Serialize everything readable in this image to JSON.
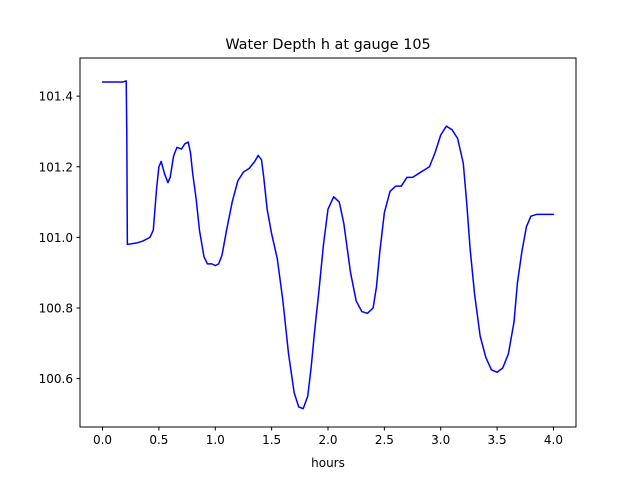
{
  "chart_data": {
    "type": "line",
    "title": "Water Depth h at gauge 105",
    "xlabel": "hours",
    "ylabel": "",
    "xlim": [
      -0.2,
      4.2
    ],
    "ylim": [
      100.463,
      101.508
    ],
    "xticks": [
      0.0,
      0.5,
      1.0,
      1.5,
      2.0,
      2.5,
      3.0,
      3.5,
      4.0
    ],
    "xtick_labels": [
      "0.0",
      "0.5",
      "1.0",
      "1.5",
      "2.0",
      "2.5",
      "3.0",
      "3.5",
      "4.0"
    ],
    "yticks": [
      100.6,
      100.8,
      101.0,
      101.2,
      101.4
    ],
    "ytick_labels": [
      "100.6",
      "100.8",
      "101.0",
      "101.2",
      "101.4"
    ],
    "grid": false,
    "series": [
      {
        "color": "#0000ff",
        "x": [
          0.0,
          0.1,
          0.18,
          0.21,
          0.215,
          0.22,
          0.3,
          0.36,
          0.42,
          0.45,
          0.48,
          0.5,
          0.52,
          0.55,
          0.58,
          0.6,
          0.63,
          0.66,
          0.7,
          0.73,
          0.76,
          0.78,
          0.8,
          0.83,
          0.86,
          0.9,
          0.93,
          0.97,
          1.0,
          1.03,
          1.06,
          1.1,
          1.15,
          1.2,
          1.25,
          1.3,
          1.35,
          1.38,
          1.41,
          1.43,
          1.46,
          1.5,
          1.55,
          1.6,
          1.65,
          1.7,
          1.74,
          1.78,
          1.82,
          1.85,
          1.88,
          1.92,
          1.96,
          2.0,
          2.05,
          2.1,
          2.14,
          2.17,
          2.2,
          2.25,
          2.3,
          2.35,
          2.4,
          2.43,
          2.46,
          2.5,
          2.55,
          2.6,
          2.65,
          2.7,
          2.75,
          2.8,
          2.85,
          2.9,
          2.95,
          3.0,
          3.05,
          3.1,
          3.15,
          3.2,
          3.23,
          3.26,
          3.3,
          3.35,
          3.4,
          3.45,
          3.5,
          3.55,
          3.6,
          3.65,
          3.68,
          3.72,
          3.76,
          3.8,
          3.85,
          3.9,
          3.95,
          3.98,
          4.0
        ],
        "y": [
          101.44,
          101.44,
          101.44,
          101.443,
          101.3,
          100.98,
          100.984,
          100.99,
          101.0,
          101.02,
          101.14,
          101.2,
          101.215,
          101.18,
          101.155,
          101.17,
          101.23,
          101.255,
          101.25,
          101.265,
          101.27,
          101.24,
          101.18,
          101.11,
          101.02,
          100.945,
          100.925,
          100.925,
          100.92,
          100.925,
          100.95,
          101.02,
          101.1,
          101.16,
          101.185,
          101.195,
          101.215,
          101.232,
          101.22,
          101.17,
          101.08,
          101.01,
          100.94,
          100.82,
          100.67,
          100.56,
          100.52,
          100.515,
          100.55,
          100.63,
          100.73,
          100.85,
          100.98,
          101.08,
          101.115,
          101.1,
          101.04,
          100.97,
          100.9,
          100.82,
          100.79,
          100.785,
          100.8,
          100.86,
          100.96,
          101.07,
          101.13,
          101.145,
          101.145,
          101.17,
          101.17,
          101.18,
          101.19,
          101.2,
          101.24,
          101.29,
          101.315,
          101.305,
          101.28,
          101.21,
          101.1,
          100.97,
          100.84,
          100.72,
          100.66,
          100.625,
          100.618,
          100.63,
          100.67,
          100.76,
          100.87,
          100.96,
          101.03,
          101.06,
          101.065,
          101.065,
          101.065,
          101.065,
          101.065
        ]
      }
    ]
  }
}
